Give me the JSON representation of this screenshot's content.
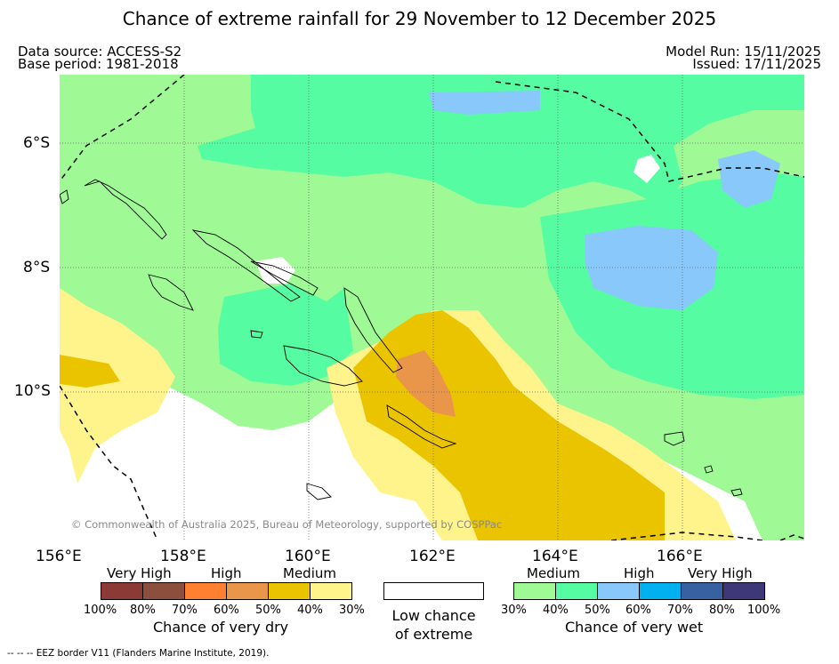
{
  "title": "Chance of extreme rainfall for 29 November to 12 December 2025",
  "header": {
    "data_source": "Data source: ACCESS-S2",
    "base_period": "Base period: 1981-2018",
    "model_run": "Model Run: 15/11/2025",
    "issued": "Issued: 17/11/2025"
  },
  "map": {
    "lat_labels": [
      "6°S",
      "8°S",
      "10°S"
    ],
    "lon_labels": [
      "156°E",
      "158°E",
      "160°E",
      "162°E",
      "164°E",
      "166°E"
    ],
    "copyright": "© Commonwealth of Australia 2025, Bureau of Meteorology, supported by COSPPac",
    "colors": {
      "dry_medium_30": "#fff48c",
      "dry_medium_40": "#ebc400",
      "dry_high_50": "#e9964b",
      "wet_medium_30": "#9ffa96",
      "wet_medium_40": "#55fca1",
      "wet_high_50": "#88c8fa",
      "low": "#ffffff"
    }
  },
  "legend": {
    "dry": {
      "categories": [
        "Very High",
        "High",
        "Medium"
      ],
      "ticks": [
        "100%",
        "80%",
        "70%",
        "60%",
        "50%",
        "40%",
        "30%"
      ],
      "colors": [
        "#8b3a36",
        "#8c4f3d",
        "#ff8030",
        "#e9964b",
        "#ebc400",
        "#fff48c"
      ],
      "caption": "Chance of very dry"
    },
    "neutral": {
      "caption_line1": "Low chance",
      "caption_line2": "of extreme",
      "color": "#ffffff"
    },
    "wet": {
      "categories": [
        "Medium",
        "High",
        "Very High"
      ],
      "ticks": [
        "30%",
        "40%",
        "50%",
        "60%",
        "70%",
        "80%",
        "100%"
      ],
      "colors": [
        "#9ffa96",
        "#55fca1",
        "#88c8fa",
        "#00b0ef",
        "#3761a1",
        "#3e3878"
      ],
      "caption": "Chance of very wet"
    }
  },
  "footer": "--  --  -- EEZ border V11 (Flanders Marine Institute, 2019)."
}
